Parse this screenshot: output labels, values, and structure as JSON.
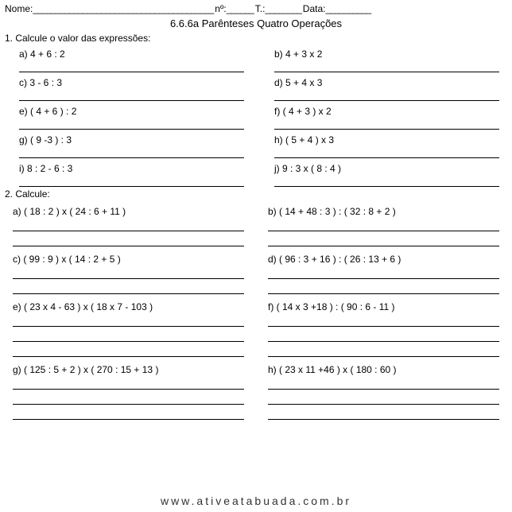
{
  "header": {
    "nome_label": "Nome:",
    "nome_underline": "________________________________________",
    "num_label": "nº:",
    "num_underline": "______",
    "t_label": "T.:",
    "t_underline": "________",
    "data_label": "Data:",
    "data_underline": "__________"
  },
  "title": "6.6.6a Parênteses Quatro Operações",
  "section1": {
    "instruction": "1. Calcule o valor das expressões:",
    "rows": [
      {
        "left": "a) 4 + 6 : 2",
        "right": "b) 4 + 3 x 2"
      },
      {
        "left": "c) 3 - 6 : 3",
        "right": "d) 5 + 4 x 3"
      },
      {
        "left": "e) ( 4 + 6 ) : 2",
        "right": "f) ( 4 + 3 ) x 2"
      },
      {
        "left": "g) ( 9 -3 ) : 3",
        "right": "h) ( 5 + 4 ) x 3"
      },
      {
        "left": " i) 8 : 2 - 6 : 3",
        "right": " j) 9 : 3 x ( 8 : 4 )"
      }
    ]
  },
  "section2": {
    "instruction": "2. Calcule:",
    "rows": [
      {
        "left": "a) ( 18 : 2 ) x ( 24 : 6 + 11 )",
        "right": "b) ( 14 + 48 : 3 ) : ( 32 : 8 + 2 )"
      },
      {
        "left": "c) ( 99 : 9 ) x ( 14 : 2 + 5 )",
        "right": "d) ( 96  : 3 + 16 ) : ( 26 : 13 + 6 )"
      },
      {
        "left": "e) ( 23 x 4 - 63 ) x ( 18 x 7 - 103 )",
        "right": "f) ( 14 x 3 +18 ) : ( 90 : 6 - 11 )"
      },
      {
        "left": "g) ( 125 : 5 + 2 ) x ( 270 : 15 + 13 )",
        "right": "h) ( 23 x 11 +46 ) x ( 180 : 60 )"
      }
    ]
  },
  "footer": "www.ativeatabuada.com.br"
}
